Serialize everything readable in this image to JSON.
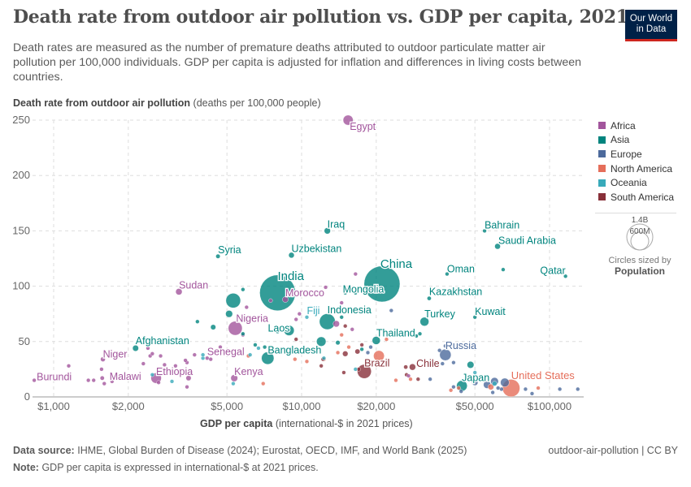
{
  "header": {
    "title": "Death rate from outdoor air pollution vs. GDP per capita, 2021",
    "subtitle": "Death rates are measured as the number of premature deaths attributed to outdoor particulate matter air pollution per 100,000 individuals. GDP per capita is adjusted for inflation and differences in living costs between countries.",
    "logo": "Our World in Data"
  },
  "footer": {
    "source_label": "Data source:",
    "source": "IHME, Global Burden of Disease (2024); Eurostat, OECD, IMF, and World Bank (2025)",
    "note_label": "Note:",
    "note": "GDP per capita is expressed in international-$ at 2021 prices.",
    "slug": "outdoor-air-pollution | CC BY"
  },
  "size_legend": {
    "big": "1.4B",
    "small": "600M",
    "caption": "Circles sized by",
    "variable": "Population"
  },
  "chart_data": {
    "type": "scatter",
    "title": "Death rate from outdoor air pollution vs. GDP per capita, 2021",
    "ylabel_bold": "Death rate from outdoor air pollution",
    "ylabel_unit": "(deaths per 100,000 people)",
    "xlabel_bold": "GDP per capita",
    "xlabel_unit": "(international-$ in 2021 prices)",
    "x_scale": "log",
    "xlim": [
      820,
      137000
    ],
    "ylim": [
      0,
      250
    ],
    "x_ticks": [
      {
        "v": 1000,
        "label": "$1,000"
      },
      {
        "v": 2000,
        "label": "$2,000"
      },
      {
        "v": 5000,
        "label": "$5,000"
      },
      {
        "v": 10000,
        "label": "$10,000"
      },
      {
        "v": 20000,
        "label": "$20,000"
      },
      {
        "v": 50000,
        "label": "$50,000"
      },
      {
        "v": 100000,
        "label": "$100,000"
      }
    ],
    "y_ticks": [
      0,
      50,
      100,
      150,
      200,
      250
    ],
    "grid": true,
    "legend_placement": "right",
    "regions": [
      {
        "name": "Africa",
        "color": "#a2559c"
      },
      {
        "name": "Asia",
        "color": "#00847e"
      },
      {
        "name": "Europe",
        "color": "#4c6a9c"
      },
      {
        "name": "North America",
        "color": "#e56e5a"
      },
      {
        "name": "Oceania",
        "color": "#38aaba"
      },
      {
        "name": "South America",
        "color": "#883039"
      }
    ],
    "points": [
      {
        "label": "Egypt",
        "region": "Africa",
        "gdp": 15400,
        "rate": 250,
        "pop": 110
      },
      {
        "label": "Iraq",
        "region": "Asia",
        "gdp": 12700,
        "rate": 150,
        "pop": 43
      },
      {
        "label": "Syria",
        "region": "Asia",
        "gdp": 4600,
        "rate": 127,
        "pop": 21
      },
      {
        "label": "Uzbekistan",
        "region": "Asia",
        "gdp": 9100,
        "rate": 128,
        "pop": 35
      },
      {
        "label": "India",
        "region": "Asia",
        "gdp": 8000,
        "rate": 94,
        "pop": 1400
      },
      {
        "label": "Morocco",
        "region": "Africa",
        "gdp": 8600,
        "rate": 88,
        "pop": 37
      },
      {
        "label": "Sudan",
        "region": "Africa",
        "gdp": 3200,
        "rate": 95,
        "pop": 46
      },
      {
        "label": "China",
        "region": "Asia",
        "gdp": 21100,
        "rate": 102,
        "pop": 1410
      },
      {
        "label": "Mongolia",
        "region": "Asia",
        "gdp": 15800,
        "rate": 97,
        "pop": 3.4
      },
      {
        "label": "Bahrain",
        "region": "Asia",
        "gdp": 54700,
        "rate": 150,
        "pop": 1.5
      },
      {
        "label": "Saudi Arabia",
        "region": "Asia",
        "gdp": 61700,
        "rate": 136,
        "pop": 36
      },
      {
        "label": "Oman",
        "region": "Asia",
        "gdp": 38600,
        "rate": 111,
        "pop": 4.5
      },
      {
        "label": "Qatar",
        "region": "Asia",
        "gdp": 116000,
        "rate": 109,
        "pop": 2.7
      },
      {
        "label": "Kazakhstan",
        "region": "Asia",
        "gdp": 32700,
        "rate": 89,
        "pop": 19
      },
      {
        "label": "Kuwait",
        "region": "Asia",
        "gdp": 50000,
        "rate": 72,
        "pop": 4.3
      },
      {
        "label": "Turkey",
        "region": "Asia",
        "gdp": 31300,
        "rate": 68,
        "pop": 85
      },
      {
        "label": "Thailand",
        "region": "Asia",
        "gdp": 20000,
        "rate": 51,
        "pop": 72
      },
      {
        "label": "Indonesia",
        "region": "Asia",
        "gdp": 12700,
        "rate": 68,
        "pop": 275
      },
      {
        "label": "Laos",
        "region": "Asia",
        "gdp": 8000,
        "rate": 59,
        "pop": 7.5
      },
      {
        "label": "Fiji",
        "region": "Oceania",
        "gdp": 10500,
        "rate": 72,
        "pop": 0.9
      },
      {
        "label": "Nigeria",
        "region": "Africa",
        "gdp": 5400,
        "rate": 62,
        "pop": 213
      },
      {
        "label": "Afghanistan",
        "region": "Asia",
        "gdp": 2140,
        "rate": 44,
        "pop": 40
      },
      {
        "label": "Senegal",
        "region": "Africa",
        "gdp": 4160,
        "rate": 35,
        "pop": 17
      },
      {
        "label": "Bangladesh",
        "region": "Asia",
        "gdp": 7300,
        "rate": 35,
        "pop": 170
      },
      {
        "label": "Niger",
        "region": "Africa",
        "gdp": 1580,
        "rate": 34,
        "pop": 25
      },
      {
        "label": "Burundi",
        "region": "Africa",
        "gdp": 835,
        "rate": 15,
        "pop": 12
      },
      {
        "label": "Malawi",
        "region": "Africa",
        "gdp": 1570,
        "rate": 17,
        "pop": 20
      },
      {
        "label": "Ethiopia",
        "region": "Africa",
        "gdp": 2590,
        "rate": 17,
        "pop": 120
      },
      {
        "label": "Kenya",
        "region": "Africa",
        "gdp": 5350,
        "rate": 17,
        "pop": 53
      },
      {
        "label": "Russia",
        "region": "Europe",
        "gdp": 38000,
        "rate": 38,
        "pop": 144
      },
      {
        "label": "Brazil",
        "region": "South America",
        "gdp": 17900,
        "rate": 23,
        "pop": 214
      },
      {
        "label": "Chile",
        "region": "South America",
        "gdp": 26300,
        "rate": 27,
        "pop": 19
      },
      {
        "label": "Japan",
        "region": "Asia",
        "gdp": 44300,
        "rate": 10,
        "pop": 125
      },
      {
        "label": "United States",
        "region": "North America",
        "gdp": 70000,
        "rate": 8,
        "pop": 335
      },
      {
        "region": "Asia",
        "gdp": 5300,
        "rate": 87,
        "pop": 235
      },
      {
        "region": "Asia",
        "gdp": 8900,
        "rate": 60,
        "pop": 115
      },
      {
        "region": "Asia",
        "gdp": 12000,
        "rate": 50,
        "pop": 98
      },
      {
        "region": "Asia",
        "gdp": 5100,
        "rate": 75,
        "pop": 54
      },
      {
        "region": "Asia",
        "gdp": 5800,
        "rate": 97,
        "pop": 5
      },
      {
        "region": "Asia",
        "gdp": 3800,
        "rate": 68,
        "pop": 4
      },
      {
        "region": "Asia",
        "gdp": 4400,
        "rate": 63,
        "pop": 30
      },
      {
        "region": "Asia",
        "gdp": 6500,
        "rate": 47,
        "pop": 10
      },
      {
        "region": "Asia",
        "gdp": 15000,
        "rate": 94,
        "pop": 4
      },
      {
        "region": "Asia",
        "gdp": 16500,
        "rate": 94,
        "pop": 3
      },
      {
        "region": "Asia",
        "gdp": 14500,
        "rate": 72,
        "pop": 6
      },
      {
        "region": "Asia",
        "gdp": 17500,
        "rate": 43,
        "pop": 5
      },
      {
        "region": "Asia",
        "gdp": 14000,
        "rate": 49,
        "pop": 22
      },
      {
        "region": "Asia",
        "gdp": 29000,
        "rate": 55,
        "pop": 6
      },
      {
        "region": "Asia",
        "gdp": 30000,
        "rate": 57,
        "pop": 4
      },
      {
        "region": "Asia",
        "gdp": 65000,
        "rate": 115,
        "pop": 2
      },
      {
        "region": "Asia",
        "gdp": 48000,
        "rate": 29,
        "pop": 52
      },
      {
        "region": "Asia",
        "gdp": 7100,
        "rate": 45,
        "pop": 4
      },
      {
        "region": "Asia",
        "gdp": 5800,
        "rate": 57,
        "pop": 6
      },
      {
        "region": "Africa",
        "gdp": 1150,
        "rate": 28,
        "pop": 4
      },
      {
        "region": "Africa",
        "gdp": 1380,
        "rate": 15,
        "pop": 6
      },
      {
        "region": "Africa",
        "gdp": 1450,
        "rate": 15,
        "pop": 14
      },
      {
        "region": "Africa",
        "gdp": 1560,
        "rate": 25,
        "pop": 5
      },
      {
        "region": "Africa",
        "gdp": 1600,
        "rate": 12,
        "pop": 10
      },
      {
        "region": "Africa",
        "gdp": 1720,
        "rate": 14,
        "pop": 6
      },
      {
        "region": "Africa",
        "gdp": 2300,
        "rate": 30,
        "pop": 10
      },
      {
        "region": "Africa",
        "gdp": 2400,
        "rate": 44,
        "pop": 5
      },
      {
        "region": "Africa",
        "gdp": 2450,
        "rate": 37,
        "pop": 8
      },
      {
        "region": "Africa",
        "gdp": 2500,
        "rate": 39,
        "pop": 6
      },
      {
        "region": "Africa",
        "gdp": 2700,
        "rate": 37,
        "pop": 12
      },
      {
        "region": "Africa",
        "gdp": 2800,
        "rate": 29,
        "pop": 4
      },
      {
        "region": "Africa",
        "gdp": 2650,
        "rate": 13,
        "pop": 6
      },
      {
        "region": "Africa",
        "gdp": 3400,
        "rate": 33,
        "pop": 8
      },
      {
        "region": "Africa",
        "gdp": 3450,
        "rate": 31,
        "pop": 10
      },
      {
        "region": "Africa",
        "gdp": 3500,
        "rate": 17,
        "pop": 30
      },
      {
        "region": "Africa",
        "gdp": 3450,
        "rate": 9,
        "pop": 5
      },
      {
        "region": "Africa",
        "gdp": 3700,
        "rate": 38,
        "pop": 6
      },
      {
        "region": "Africa",
        "gdp": 4300,
        "rate": 34,
        "pop": 7
      },
      {
        "region": "Africa",
        "gdp": 4700,
        "rate": 45,
        "pop": 8
      },
      {
        "region": "Africa",
        "gdp": 5800,
        "rate": 56,
        "pop": 15
      },
      {
        "region": "Africa",
        "gdp": 6000,
        "rate": 81,
        "pop": 5
      },
      {
        "region": "Africa",
        "gdp": 7500,
        "rate": 87,
        "pop": 3
      },
      {
        "region": "Africa",
        "gdp": 9500,
        "rate": 70,
        "pop": 5
      },
      {
        "region": "Africa",
        "gdp": 9800,
        "rate": 75,
        "pop": 4
      },
      {
        "region": "Africa",
        "gdp": 12500,
        "rate": 99,
        "pop": 4
      },
      {
        "region": "Africa",
        "gdp": 13800,
        "rate": 66,
        "pop": 45
      },
      {
        "region": "Africa",
        "gdp": 14500,
        "rate": 85,
        "pop": 12
      },
      {
        "region": "Africa",
        "gdp": 16500,
        "rate": 111,
        "pop": 3
      },
      {
        "region": "Africa",
        "gdp": 16000,
        "rate": 61,
        "pop": 3
      },
      {
        "region": "Africa",
        "gdp": 27000,
        "rate": 19,
        "pop": 2
      },
      {
        "region": "Africa",
        "gdp": 3100,
        "rate": 28,
        "pop": 3
      },
      {
        "region": "Europe",
        "gdp": 33000,
        "rate": 16,
        "pop": 3
      },
      {
        "region": "Europe",
        "gdp": 37000,
        "rate": 30,
        "pop": 5
      },
      {
        "region": "Europe",
        "gdp": 38000,
        "rate": 46,
        "pop": 4
      },
      {
        "region": "Europe",
        "gdp": 36000,
        "rate": 42,
        "pop": 9
      },
      {
        "region": "Europe",
        "gdp": 41000,
        "rate": 31,
        "pop": 10
      },
      {
        "region": "Europe",
        "gdp": 44000,
        "rate": 5,
        "pop": 6
      },
      {
        "region": "Europe",
        "gdp": 50000,
        "rate": 13,
        "pop": 40
      },
      {
        "region": "Europe",
        "gdp": 56000,
        "rate": 11,
        "pop": 60
      },
      {
        "region": "Europe",
        "gdp": 60000,
        "rate": 14,
        "pop": 67
      },
      {
        "region": "Europe",
        "gdp": 62000,
        "rate": 8,
        "pop": 10
      },
      {
        "region": "Europe",
        "gdp": 59000,
        "rate": 4,
        "pop": 5
      },
      {
        "region": "Europe",
        "gdp": 64000,
        "rate": 7,
        "pop": 17
      },
      {
        "region": "Europe",
        "gdp": 66000,
        "rate": 13,
        "pop": 83
      },
      {
        "region": "Europe",
        "gdp": 80000,
        "rate": 7,
        "pop": 5
      },
      {
        "region": "Europe",
        "gdp": 85000,
        "rate": 3,
        "pop": 5
      },
      {
        "region": "Europe",
        "gdp": 110000,
        "rate": 7,
        "pop": 5
      },
      {
        "region": "Europe",
        "gdp": 130000,
        "rate": 7,
        "pop": 1
      },
      {
        "region": "Europe",
        "gdp": 23000,
        "rate": 78,
        "pop": 6
      },
      {
        "region": "Europe",
        "gdp": 27000,
        "rate": 56,
        "pop": 3
      },
      {
        "region": "Europe",
        "gdp": 19000,
        "rate": 45,
        "pop": 3
      },
      {
        "region": "Europe",
        "gdp": 18500,
        "rate": 40,
        "pop": 7
      },
      {
        "region": "Europe",
        "gdp": 41000,
        "rate": 9,
        "pop": 10
      },
      {
        "region": "North America",
        "gdp": 10500,
        "rate": 32,
        "pop": 5
      },
      {
        "region": "North America",
        "gdp": 9400,
        "rate": 34,
        "pop": 6
      },
      {
        "region": "North America",
        "gdp": 12300,
        "rate": 34,
        "pop": 4
      },
      {
        "region": "North America",
        "gdp": 7000,
        "rate": 12,
        "pop": 3
      },
      {
        "region": "North America",
        "gdp": 6100,
        "rate": 37,
        "pop": 3
      },
      {
        "region": "North America",
        "gdp": 14000,
        "rate": 40,
        "pop": 4
      },
      {
        "region": "North America",
        "gdp": 14500,
        "rate": 56,
        "pop": 3
      },
      {
        "region": "North America",
        "gdp": 15500,
        "rate": 45,
        "pop": 3
      },
      {
        "region": "North America",
        "gdp": 20500,
        "rate": 37,
        "pop": 128
      },
      {
        "region": "North America",
        "gdp": 22000,
        "rate": 52,
        "pop": 3
      },
      {
        "region": "North America",
        "gdp": 24000,
        "rate": 15,
        "pop": 3
      },
      {
        "region": "North America",
        "gdp": 27500,
        "rate": 16,
        "pop": 3
      },
      {
        "region": "North America",
        "gdp": 33000,
        "rate": 29,
        "pop": 3
      },
      {
        "region": "North America",
        "gdp": 40000,
        "rate": 6,
        "pop": 3
      },
      {
        "region": "North America",
        "gdp": 43000,
        "rate": 8,
        "pop": 3
      },
      {
        "region": "North America",
        "gdp": 58000,
        "rate": 9,
        "pop": 38
      },
      {
        "region": "North America",
        "gdp": 90000,
        "rate": 8,
        "pop": 2
      },
      {
        "region": "Oceania",
        "gdp": 2500,
        "rate": 20,
        "pop": 10
      },
      {
        "region": "Oceania",
        "gdp": 3000,
        "rate": 14,
        "pop": 2
      },
      {
        "region": "Oceania",
        "gdp": 4000,
        "rate": 35,
        "pop": 1
      },
      {
        "region": "Oceania",
        "gdp": 4000,
        "rate": 38,
        "pop": 1
      },
      {
        "region": "Oceania",
        "gdp": 5300,
        "rate": 12,
        "pop": 1
      },
      {
        "region": "Oceania",
        "gdp": 6200,
        "rate": 38,
        "pop": 1
      },
      {
        "region": "Oceania",
        "gdp": 6700,
        "rate": 44,
        "pop": 1
      },
      {
        "region": "Oceania",
        "gdp": 7400,
        "rate": 40,
        "pop": 1
      },
      {
        "region": "Oceania",
        "gdp": 12300,
        "rate": 35,
        "pop": 1
      },
      {
        "region": "Oceania",
        "gdp": 16500,
        "rate": 25,
        "pop": 1
      },
      {
        "region": "Oceania",
        "gdp": 50000,
        "rate": 22,
        "pop": 5
      },
      {
        "region": "Oceania",
        "gdp": 60000,
        "rate": 12,
        "pop": 26
      },
      {
        "region": "South America",
        "gdp": 9500,
        "rate": 52,
        "pop": 3
      },
      {
        "region": "South America",
        "gdp": 12200,
        "rate": 34,
        "pop": 4
      },
      {
        "region": "South America",
        "gdp": 15000,
        "rate": 64,
        "pop": 3
      },
      {
        "region": "South America",
        "gdp": 14800,
        "rate": 22,
        "pop": 12
      },
      {
        "region": "South America",
        "gdp": 17500,
        "rate": 47,
        "pop": 4
      },
      {
        "region": "South America",
        "gdp": 16800,
        "rate": 41,
        "pop": 28
      },
      {
        "region": "South America",
        "gdp": 15000,
        "rate": 39,
        "pop": 33
      },
      {
        "region": "South America",
        "gdp": 17000,
        "rate": 25,
        "pop": 3
      },
      {
        "region": "South America",
        "gdp": 26500,
        "rate": 20,
        "pop": 3
      },
      {
        "region": "South America",
        "gdp": 28000,
        "rate": 27,
        "pop": 45
      },
      {
        "region": "South America",
        "gdp": 29500,
        "rate": 16,
        "pop": 3
      },
      {
        "region": "South America",
        "gdp": 12000,
        "rate": 28,
        "pop": 3
      }
    ]
  }
}
